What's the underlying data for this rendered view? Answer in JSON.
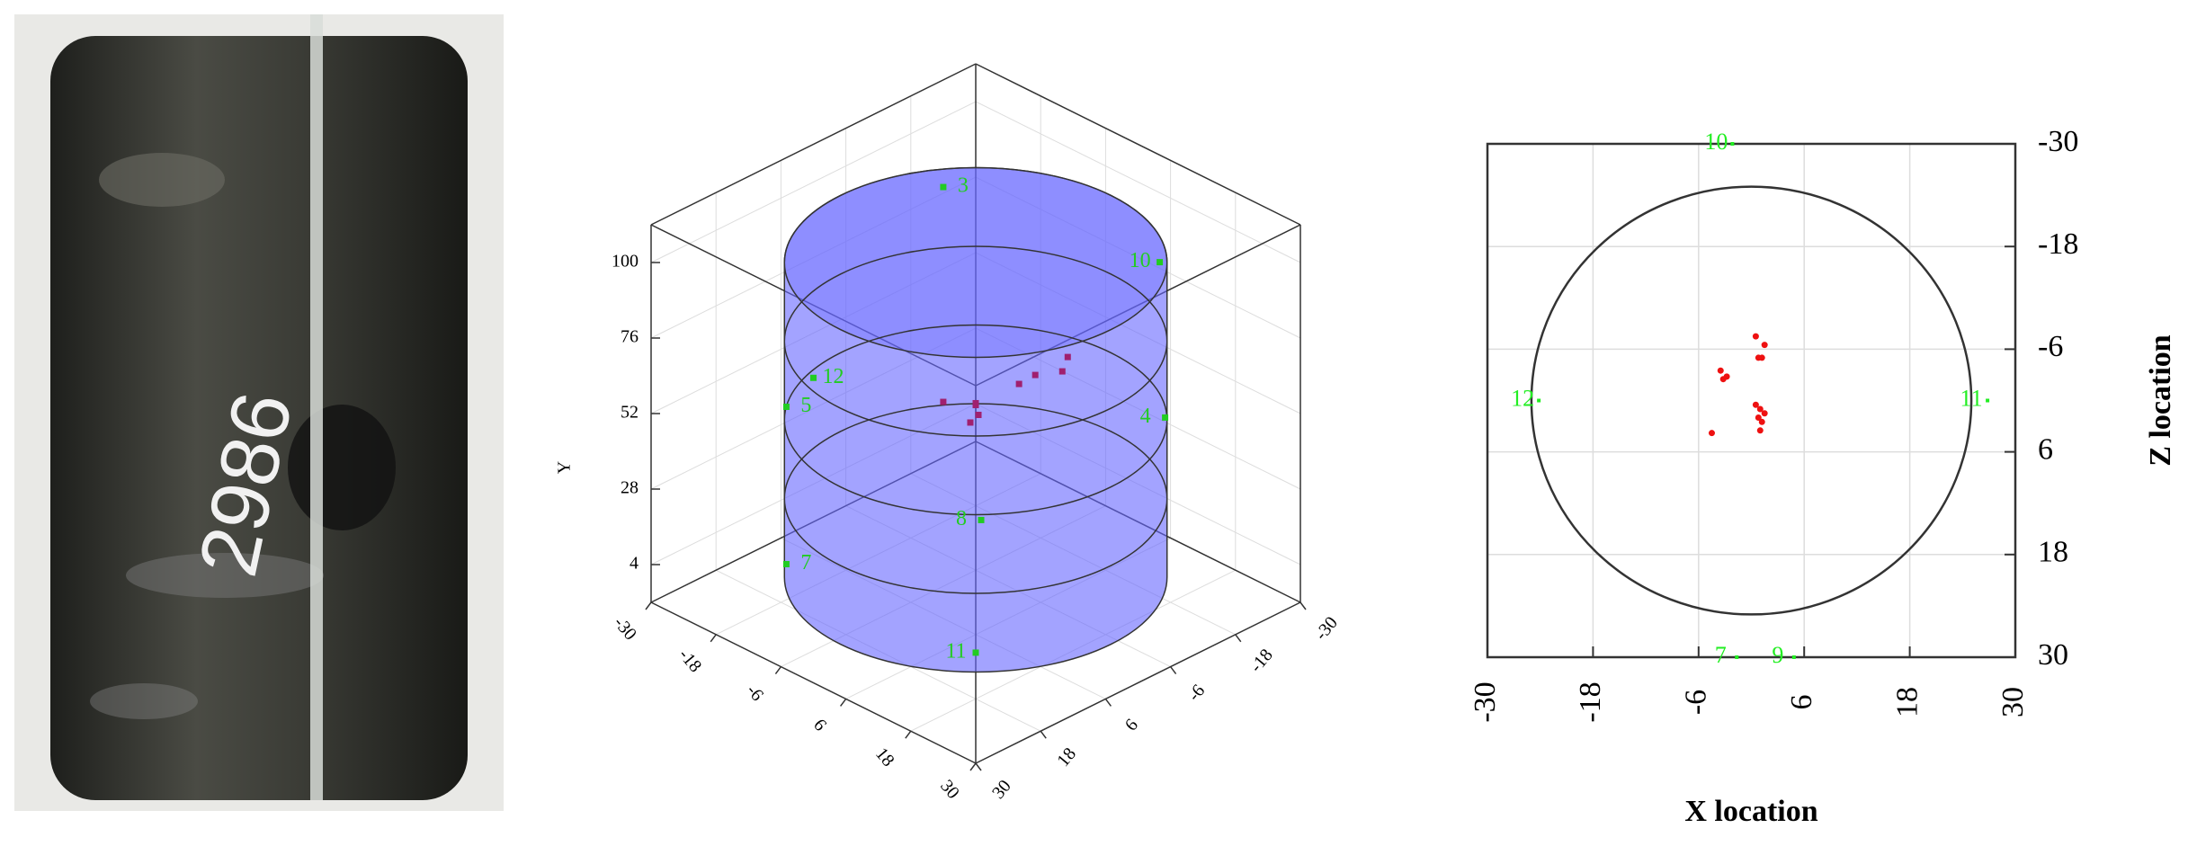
{
  "photo": {
    "marking": "2986"
  },
  "chart_data": [
    {
      "type": "scatter3d",
      "y_label": "Y",
      "xlim": [
        -30,
        30
      ],
      "ylim": [
        -8,
        112
      ],
      "zlim": [
        -30,
        30
      ],
      "xticks": [
        -30,
        -18,
        -6,
        6,
        18,
        30
      ],
      "yticks": [
        4,
        28,
        52,
        76,
        100
      ],
      "zticks": [
        -30,
        -18,
        -6,
        6,
        18,
        30
      ],
      "specimen_radius": 25,
      "specimen_height": 100,
      "specimen_color": "#6666ff",
      "grid": true,
      "series": [
        {
          "color": "#22cc22",
          "x": [
            -20,
            14,
            -17,
            -24,
            20,
            18,
            -17,
            17
          ],
          "y": [
            95,
            95,
            55,
            48,
            55,
            48,
            5,
            5
          ],
          "z": [
            -14,
            -20,
            18,
            6,
            -15,
            17,
            18,
            17
          ],
          "labels": [
            "3",
            "10",
            "5",
            "12",
            "4",
            "8",
            "7",
            "11"
          ]
        },
        {
          "color": "#a0206f",
          "x": [
            0,
            1,
            -1,
            0.5,
            2,
            3,
            -4,
            6,
            5,
            0
          ],
          "y": [
            55,
            57,
            53,
            52,
            58,
            60,
            54,
            62,
            64,
            50
          ],
          "z": [
            0,
            1,
            -1,
            0,
            -6,
            -8,
            2,
            -10,
            -12,
            1
          ]
        }
      ]
    },
    {
      "type": "scatter",
      "x_label": "X location",
      "y_label": "Z location",
      "xlim": [
        -30,
        30
      ],
      "ylim": [
        -30,
        30
      ],
      "y_inverted": true,
      "xticks": [
        -30,
        -18,
        -6,
        6,
        18,
        30
      ],
      "yticks": [
        -30,
        -18,
        -6,
        6,
        18,
        30
      ],
      "specimen_radius": 25,
      "grid": true,
      "series": [
        {
          "color": "#22ee22",
          "x": [
            -4,
            -26,
            25,
            -3.5,
            3
          ],
          "y": [
            -30,
            0,
            0,
            30,
            30
          ],
          "labels": [
            "10",
            "12",
            "11",
            "7",
            "9"
          ]
        },
        {
          "color": "#ee1111",
          "x": [
            0.5,
            1.5,
            1.2,
            0.8,
            -3.5,
            -3.2,
            -2.8,
            0.5,
            1,
            1.5,
            0.8,
            1.2,
            -4.5,
            1
          ],
          "y": [
            -7.5,
            -6.5,
            -5,
            -5,
            -3.5,
            -2.5,
            -2.8,
            0.5,
            1,
            1.5,
            2,
            2.5,
            3.8,
            3.5
          ]
        }
      ]
    }
  ]
}
